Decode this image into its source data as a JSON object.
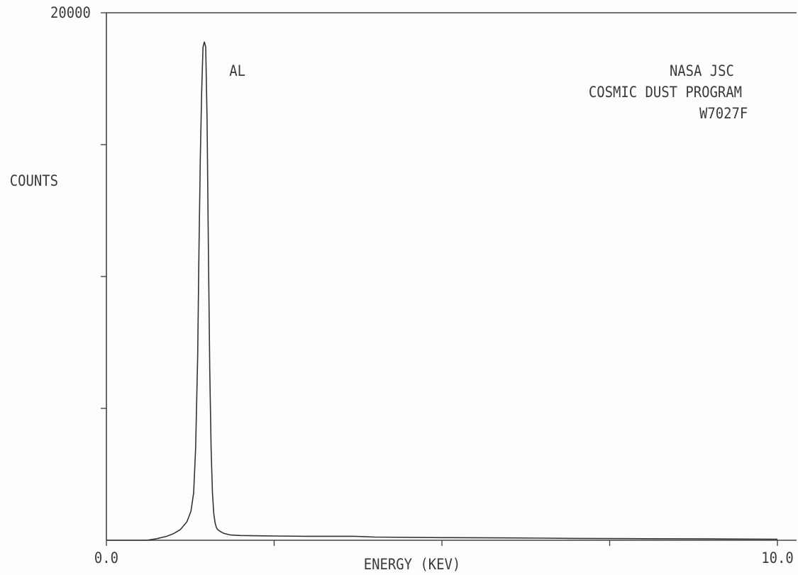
{
  "chart_data": {
    "type": "line",
    "xlabel": "ENERGY (KEV)",
    "ylabel": "COUNTS",
    "xlim": [
      0.0,
      10.0
    ],
    "ylim": [
      0,
      20000
    ],
    "y_top_label": "20000",
    "x_tick_labels": [
      "0.0",
      "10.0"
    ],
    "x_minor_ticks": [
      2.5,
      5.0,
      7.5
    ],
    "y_minor_ticks": [
      5000,
      10000,
      15000
    ],
    "grid": false,
    "legend": "none",
    "annotations": [
      {
        "text": "AL",
        "x": 1.49
      }
    ],
    "info_lines": [
      "NASA JSC",
      "COSMIC DUST PROGRAM",
      "W7027F"
    ],
    "series": [
      {
        "x": [
          0.0,
          0.6,
          0.75,
          0.9,
          1.0,
          1.1,
          1.2,
          1.26,
          1.3,
          1.33,
          1.36,
          1.38,
          1.4,
          1.42,
          1.44,
          1.46,
          1.48,
          1.5,
          1.52,
          1.54,
          1.56,
          1.58,
          1.6,
          1.62,
          1.64,
          1.66,
          1.7,
          1.75,
          1.85,
          2.0,
          2.5,
          3.0,
          3.7,
          4.0,
          5.0,
          6.0,
          6.5,
          7.0,
          8.0,
          9.0,
          10.0
        ],
        "y": [
          0,
          0,
          60,
          150,
          250,
          400,
          700,
          1100,
          1800,
          3500,
          7000,
          11000,
          14500,
          17000,
          18700,
          18900,
          18700,
          16000,
          11000,
          6500,
          3500,
          1800,
          1000,
          650,
          480,
          400,
          330,
          260,
          200,
          180,
          160,
          150,
          150,
          120,
          100,
          90,
          80,
          70,
          60,
          50,
          40
        ]
      }
    ],
    "colors": {
      "trace": "#333333",
      "axis": "#444444",
      "text": "#3a3a3a",
      "background": "#fdfdfb"
    }
  }
}
